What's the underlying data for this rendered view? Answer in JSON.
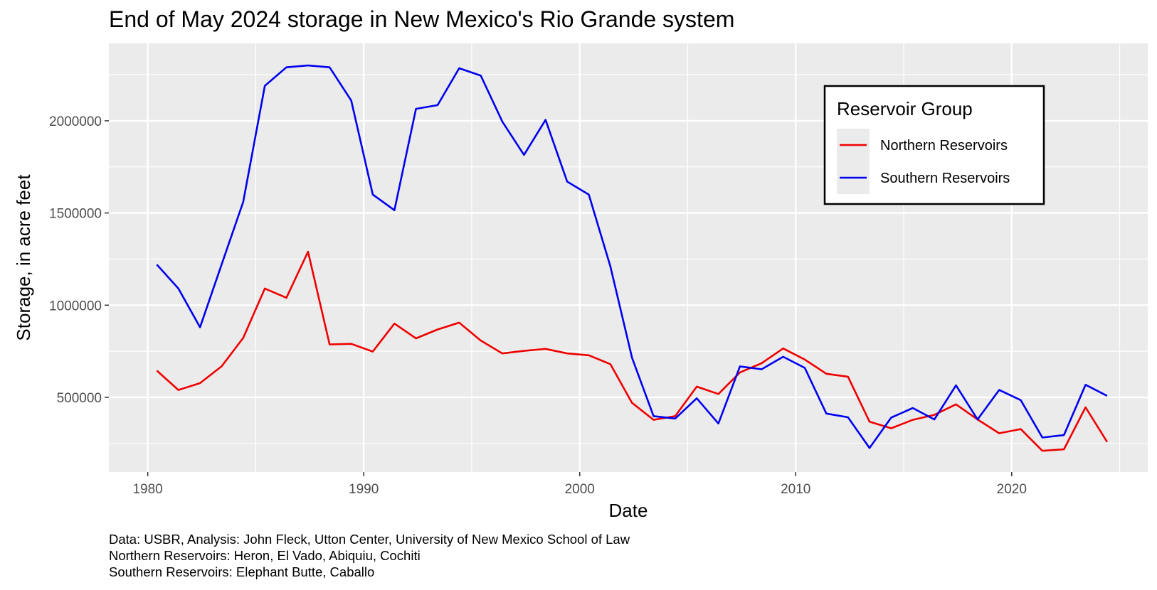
{
  "chart_data": {
    "type": "line",
    "title": "End of May 2024 storage in New Mexico's Rio Grande system",
    "xlabel": "Date",
    "ylabel": "Storage, in acre feet",
    "xlim": [
      1978.2,
      2026.3
    ],
    "ylim": [
      95000,
      2420000
    ],
    "x_ticks": [
      1980,
      1990,
      2000,
      2010,
      2020
    ],
    "x_tick_labels": [
      "1980",
      "1990",
      "2000",
      "2010",
      "2020"
    ],
    "y_ticks": [
      500000,
      1000000,
      1500000,
      2000000
    ],
    "y_tick_labels": [
      "500000",
      "1000000",
      "1500000",
      "2000000"
    ],
    "legend": {
      "title": "Reservoir Group",
      "position": "top-right"
    },
    "grid": true,
    "x": [
      1980,
      1981,
      1982,
      1983,
      1984,
      1985,
      1986,
      1987,
      1988,
      1989,
      1990,
      1991,
      1992,
      1993,
      1994,
      1995,
      1996,
      1997,
      1998,
      1999,
      2000,
      2001,
      2002,
      2003,
      2004,
      2005,
      2006,
      2007,
      2008,
      2009,
      2010,
      2011,
      2012,
      2013,
      2014,
      2015,
      2016,
      2017,
      2018,
      2019,
      2020,
      2021,
      2022,
      2023,
      2024
    ],
    "series": [
      {
        "name": "Northern Reservoirs",
        "color": "#ee0000",
        "values": [
          645000,
          540000,
          577000,
          668000,
          822000,
          1090000,
          1040000,
          1290000,
          787000,
          790000,
          748000,
          900000,
          820000,
          868000,
          905000,
          808000,
          738000,
          752000,
          763000,
          738000,
          728000,
          680000,
          470000,
          378000,
          398000,
          558000,
          518000,
          635000,
          685000,
          765000,
          705000,
          628000,
          612000,
          368000,
          332000,
          378000,
          405000,
          462000,
          380000,
          305000,
          328000,
          210000,
          218000,
          446000,
          258000
        ]
      },
      {
        "name": "Southern Reservoirs",
        "color": "#0000ee",
        "values": [
          1220000,
          1090000,
          880000,
          1220000,
          1560000,
          2190000,
          2290000,
          2300000,
          2290000,
          2110000,
          1600000,
          1515000,
          2065000,
          2085000,
          2285000,
          2245000,
          1995000,
          1815000,
          2005000,
          1670000,
          1600000,
          1210000,
          715000,
          398000,
          385000,
          495000,
          358000,
          668000,
          652000,
          720000,
          660000,
          412000,
          392000,
          225000,
          390000,
          442000,
          380000,
          565000,
          380000,
          540000,
          485000,
          282000,
          295000,
          568000,
          508000
        ]
      }
    ]
  },
  "caption": {
    "line1": "Data: USBR, Analysis: John Fleck, Utton Center, University of New Mexico School of Law",
    "line2": "Northern Reservoirs: Heron, El Vado, Abiquiu, Cochiti",
    "line3": "Southern Reservoirs: Elephant Butte, Caballo"
  }
}
